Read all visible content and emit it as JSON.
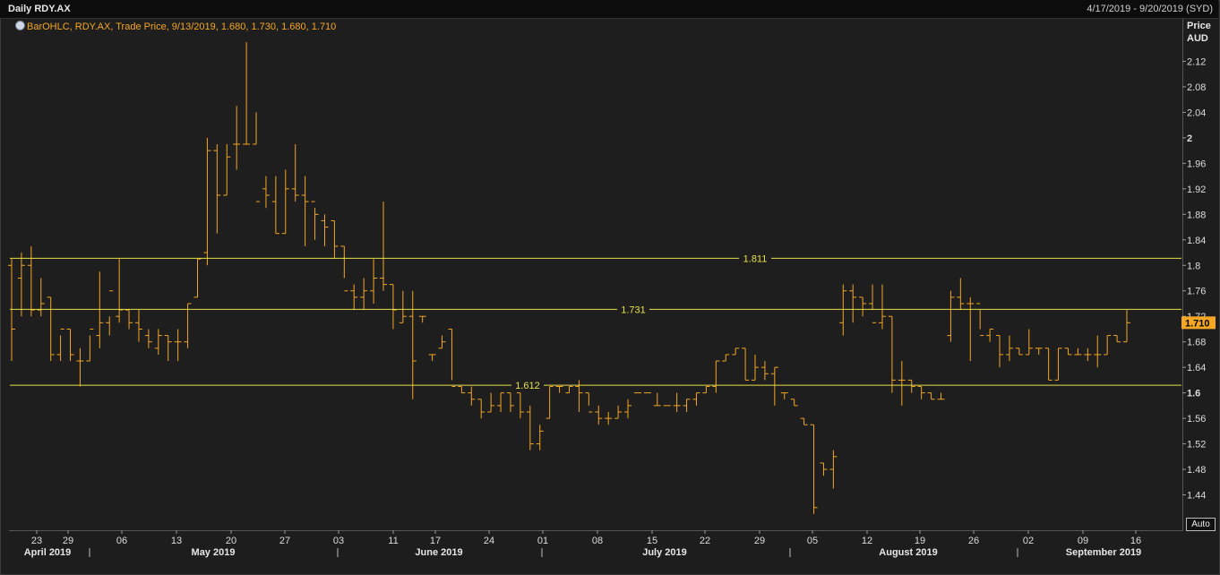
{
  "header": {
    "title": "Daily RDY.AX",
    "range": "4/17/2019 - 9/20/2019 (SYD)"
  },
  "legend": {
    "text": "BarOHLC, RDY.AX, Trade Price, 9/13/2019, 1.680, 1.730, 1.680, 1.710",
    "icon": "globe-icon"
  },
  "y_title": {
    "line1": "Price",
    "line2": "AUD"
  },
  "auto_button": "Auto",
  "colors": {
    "bars": "#f5a623",
    "hlines": "#e8e04a",
    "last_bg": "#f5a623",
    "background": "#1e1e1e"
  },
  "chart_data": {
    "type": "bar",
    "subtype": "ohlc",
    "y_ticks": [
      "1.44",
      "1.48",
      "1.52",
      "1.56",
      "1.6",
      "1.64",
      "1.68",
      "1.72",
      "1.76",
      "1.8",
      "1.84",
      "1.88",
      "1.92",
      "1.96",
      "2",
      "2.04",
      "2.08",
      "2.12"
    ],
    "ylim": [
      1.4,
      2.16
    ],
    "x_tick_labels": [
      "23",
      "29",
      "06",
      "13",
      "20",
      "27",
      "03",
      "11",
      "17",
      "24",
      "01",
      "08",
      "15",
      "22",
      "29",
      "05",
      "12",
      "19",
      "26",
      "02",
      "09",
      "16"
    ],
    "month_labels": [
      "April 2019",
      "May 2019",
      "June 2019",
      "July 2019",
      "August 2019",
      "September 2019"
    ],
    "hlines": [
      {
        "value": 1.811,
        "label": "1.811"
      },
      {
        "value": 1.731,
        "label": "1.731"
      },
      {
        "value": 1.612,
        "label": "1.612"
      }
    ],
    "last_value": "1.710",
    "bars": [
      [
        1.8,
        1.81,
        1.65,
        1.7
      ],
      [
        1.78,
        1.82,
        1.72,
        1.8
      ],
      [
        1.8,
        1.83,
        1.72,
        1.73
      ],
      [
        1.73,
        1.78,
        1.72,
        1.74
      ],
      [
        1.75,
        1.75,
        1.65,
        1.66
      ],
      [
        1.66,
        1.69,
        1.65,
        1.7
      ],
      [
        1.7,
        1.7,
        1.65,
        1.66
      ],
      [
        1.65,
        1.67,
        1.61,
        1.65
      ],
      [
        1.65,
        1.69,
        1.65,
        1.7
      ],
      [
        1.69,
        1.79,
        1.67,
        1.71
      ],
      [
        1.71,
        1.72,
        1.69,
        1.76
      ],
      [
        1.72,
        1.81,
        1.71,
        1.73
      ],
      [
        1.73,
        1.73,
        1.7,
        1.71
      ],
      [
        1.71,
        1.73,
        1.68,
        1.7
      ],
      [
        1.69,
        1.7,
        1.67,
        1.68
      ],
      [
        1.67,
        1.7,
        1.66,
        1.69
      ],
      [
        1.69,
        1.69,
        1.65,
        1.68
      ],
      [
        1.68,
        1.7,
        1.65,
        1.68
      ],
      [
        1.68,
        1.74,
        1.67,
        1.74
      ],
      [
        1.75,
        1.81,
        1.75,
        1.81
      ],
      [
        1.82,
        2.0,
        1.8,
        1.98
      ],
      [
        1.98,
        1.99,
        1.85,
        1.91
      ],
      [
        1.91,
        1.99,
        1.91,
        1.97
      ],
      [
        1.99,
        2.05,
        1.95,
        1.99
      ],
      [
        1.99,
        2.15,
        1.99,
        1.99
      ],
      [
        1.99,
        2.04,
        1.99,
        1.9
      ],
      [
        1.92,
        1.94,
        1.89,
        1.91
      ],
      [
        1.9,
        1.94,
        1.85,
        1.85
      ],
      [
        1.85,
        1.95,
        1.85,
        1.92
      ],
      [
        1.92,
        1.99,
        1.9,
        1.91
      ],
      [
        1.91,
        1.94,
        1.83,
        1.9
      ],
      [
        1.9,
        1.89,
        1.84,
        1.88
      ],
      [
        1.87,
        1.88,
        1.83,
        1.86
      ],
      [
        1.87,
        1.87,
        1.81,
        1.83
      ],
      [
        1.83,
        1.83,
        1.78,
        1.76
      ],
      [
        1.76,
        1.77,
        1.73,
        1.75
      ],
      [
        1.75,
        1.78,
        1.73,
        1.76
      ],
      [
        1.76,
        1.81,
        1.74,
        1.78
      ],
      [
        1.78,
        1.9,
        1.76,
        1.77
      ],
      [
        1.77,
        1.77,
        1.7,
        1.73
      ],
      [
        1.71,
        1.76,
        1.71,
        1.72
      ],
      [
        1.72,
        1.76,
        1.59,
        1.65
      ],
      [
        1.72,
        1.72,
        1.71,
        1.72
      ],
      [
        1.66,
        1.66,
        1.65,
        1.66
      ],
      [
        1.67,
        1.69,
        1.67,
        1.68
      ],
      [
        1.7,
        1.7,
        1.62,
        1.61
      ],
      [
        1.61,
        1.61,
        1.6,
        1.6
      ],
      [
        1.6,
        1.61,
        1.58,
        1.59
      ],
      [
        1.59,
        1.59,
        1.56,
        1.57
      ],
      [
        1.57,
        1.6,
        1.57,
        1.58
      ],
      [
        1.58,
        1.6,
        1.57,
        1.6
      ],
      [
        1.6,
        1.6,
        1.57,
        1.58
      ],
      [
        1.6,
        1.6,
        1.56,
        1.57
      ],
      [
        1.57,
        1.58,
        1.51,
        1.52
      ],
      [
        1.52,
        1.55,
        1.51,
        1.54
      ],
      [
        1.56,
        1.61,
        1.56,
        1.61
      ],
      [
        1.61,
        1.61,
        1.6,
        1.61
      ],
      [
        1.6,
        1.61,
        1.6,
        1.61
      ],
      [
        1.61,
        1.62,
        1.57,
        1.6
      ],
      [
        1.6,
        1.6,
        1.58,
        1.57
      ],
      [
        1.57,
        1.58,
        1.55,
        1.56
      ],
      [
        1.56,
        1.57,
        1.55,
        1.56
      ],
      [
        1.56,
        1.58,
        1.56,
        1.57
      ],
      [
        1.57,
        1.59,
        1.56,
        1.58
      ],
      [
        1.6,
        1.6,
        1.6,
        1.6
      ],
      [
        1.6,
        1.6,
        1.6,
        1.6
      ],
      [
        1.58,
        1.6,
        1.58,
        1.58
      ],
      [
        1.58,
        1.58,
        1.58,
        1.58
      ],
      [
        1.58,
        1.6,
        1.57,
        1.58
      ],
      [
        1.58,
        1.59,
        1.57,
        1.59
      ],
      [
        1.59,
        1.6,
        1.58,
        1.6
      ],
      [
        1.6,
        1.61,
        1.6,
        1.61
      ],
      [
        1.61,
        1.65,
        1.6,
        1.65
      ],
      [
        1.65,
        1.66,
        1.65,
        1.66
      ],
      [
        1.66,
        1.67,
        1.66,
        1.67
      ],
      [
        1.67,
        1.67,
        1.62,
        1.62
      ],
      [
        1.62,
        1.66,
        1.62,
        1.64
      ],
      [
        1.64,
        1.65,
        1.62,
        1.63
      ],
      [
        1.63,
        1.64,
        1.58,
        1.64
      ],
      [
        1.6,
        1.6,
        1.59,
        1.6
      ],
      [
        1.59,
        1.59,
        1.58,
        1.58
      ],
      [
        1.56,
        1.56,
        1.55,
        1.55
      ],
      [
        1.55,
        1.55,
        1.41,
        1.42
      ],
      [
        1.49,
        1.49,
        1.47,
        1.48
      ],
      [
        1.48,
        1.51,
        1.45,
        1.5
      ],
      [
        1.71,
        1.77,
        1.69,
        1.76
      ],
      [
        1.76,
        1.77,
        1.71,
        1.75
      ],
      [
        1.75,
        1.75,
        1.72,
        1.74
      ],
      [
        1.74,
        1.77,
        1.73,
        1.71
      ],
      [
        1.71,
        1.77,
        1.7,
        1.72
      ],
      [
        1.72,
        1.72,
        1.6,
        1.62
      ],
      [
        1.62,
        1.65,
        1.58,
        1.62
      ],
      [
        1.62,
        1.62,
        1.6,
        1.61
      ],
      [
        1.61,
        1.61,
        1.59,
        1.6
      ],
      [
        1.6,
        1.6,
        1.59,
        1.59
      ],
      [
        1.59,
        1.6,
        1.59,
        1.59
      ],
      [
        1.69,
        1.76,
        1.68,
        1.75
      ],
      [
        1.75,
        1.78,
        1.73,
        1.74
      ],
      [
        1.74,
        1.75,
        1.65,
        1.74
      ],
      [
        1.74,
        1.73,
        1.7,
        1.69
      ],
      [
        1.69,
        1.7,
        1.68,
        1.7
      ],
      [
        1.69,
        1.69,
        1.64,
        1.66
      ],
      [
        1.66,
        1.69,
        1.65,
        1.67
      ],
      [
        1.67,
        1.67,
        1.66,
        1.66
      ],
      [
        1.66,
        1.7,
        1.66,
        1.67
      ],
      [
        1.67,
        1.67,
        1.66,
        1.67
      ],
      [
        1.67,
        1.67,
        1.62,
        1.62
      ],
      [
        1.62,
        1.67,
        1.62,
        1.67
      ],
      [
        1.67,
        1.67,
        1.66,
        1.66
      ],
      [
        1.66,
        1.67,
        1.66,
        1.66
      ],
      [
        1.66,
        1.67,
        1.65,
        1.66
      ],
      [
        1.66,
        1.69,
        1.64,
        1.66
      ],
      [
        1.66,
        1.69,
        1.66,
        1.69
      ],
      [
        1.69,
        1.69,
        1.68,
        1.68
      ],
      [
        1.68,
        1.73,
        1.68,
        1.71
      ]
    ]
  }
}
